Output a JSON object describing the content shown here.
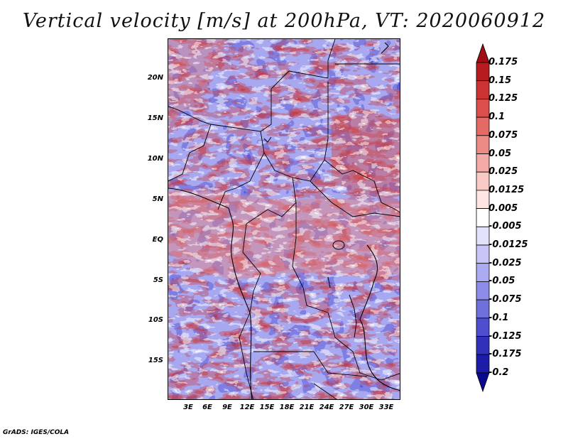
{
  "title": "Vertical velocity [m/s] at 200hPa, VT: 2020060912",
  "credit": "GrADS: IGES/COLA",
  "map": {
    "lat_labels": [
      "20N",
      "15N",
      "10N",
      "5N",
      "EQ",
      "5S",
      "10S",
      "15S"
    ],
    "lon_labels": [
      "3E",
      "6E",
      "9E",
      "12E",
      "15E",
      "18E",
      "21E",
      "24E",
      "27E",
      "30E",
      "33E"
    ],
    "field": "vertical velocity",
    "level": "200hPa",
    "valid_time": "2020060912"
  },
  "colorbar": {
    "labels": [
      "0.175",
      "0.15",
      "0.125",
      "0.1",
      "0.075",
      "0.05",
      "0.025",
      "0.0125",
      "0.005",
      "-0.005",
      "-0.0125",
      "-0.025",
      "-0.05",
      "-0.075",
      "-0.1",
      "-0.125",
      "-0.175",
      "-0.2"
    ],
    "colors": [
      "#a00d12",
      "#b81b1f",
      "#cc3332",
      "#dc4e4c",
      "#e46a66",
      "#ec8a85",
      "#f4aaa6",
      "#f9c9c6",
      "#fde6e4",
      "#ffffff",
      "#e2e2fb",
      "#c8c6f6",
      "#ababf1",
      "#8d8de9",
      "#7070dd",
      "#4e4ece",
      "#3030bb",
      "#1c1ca8",
      "#0a0a8e"
    ]
  }
}
